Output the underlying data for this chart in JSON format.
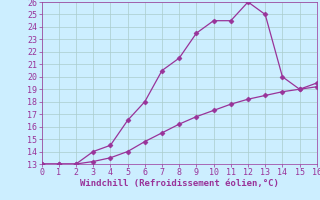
{
  "xlabel": "Windchill (Refroidissement éolien,°C)",
  "x_upper": [
    0,
    1,
    2,
    3,
    4,
    5,
    6,
    7,
    8,
    9,
    10,
    11,
    12,
    13,
    14,
    15,
    16
  ],
  "y_upper": [
    13.0,
    13.0,
    13.0,
    14.0,
    14.5,
    16.5,
    18.0,
    20.5,
    21.5,
    23.5,
    24.5,
    24.5,
    26.0,
    25.0,
    20.0,
    19.0,
    19.5
  ],
  "x_lower": [
    0,
    1,
    2,
    3,
    4,
    5,
    6,
    7,
    8,
    9,
    10,
    11,
    12,
    13,
    14,
    15,
    16
  ],
  "y_lower": [
    13.0,
    13.0,
    13.0,
    13.2,
    13.5,
    14.0,
    14.8,
    15.5,
    16.2,
    16.8,
    17.3,
    17.8,
    18.2,
    18.5,
    18.8,
    19.0,
    19.2
  ],
  "line_color": "#993399",
  "marker": "D",
  "marker_size": 2.5,
  "bg_color": "#cceeff",
  "grid_color": "#aacccc",
  "xlim": [
    0,
    16
  ],
  "ylim": [
    13,
    26
  ],
  "yticks": [
    13,
    14,
    15,
    16,
    17,
    18,
    19,
    20,
    21,
    22,
    23,
    24,
    25,
    26
  ],
  "xticks": [
    0,
    1,
    2,
    3,
    4,
    5,
    6,
    7,
    8,
    9,
    10,
    11,
    12,
    13,
    14,
    15,
    16
  ],
  "tick_fontsize": 6,
  "xlabel_fontsize": 6.5,
  "lw": 0.9
}
